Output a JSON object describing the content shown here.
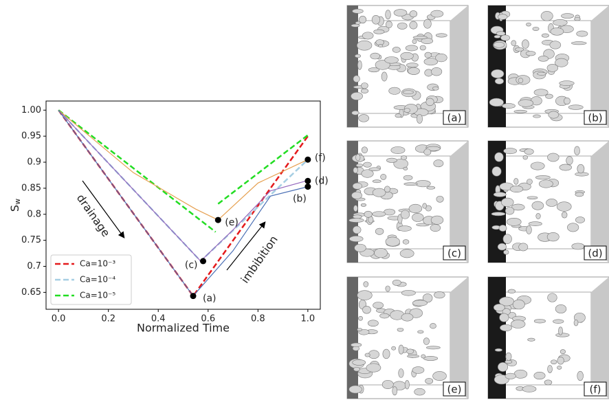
{
  "chart_data": {
    "type": "line",
    "xlabel": "Normalized Time",
    "ylabel": "S",
    "ylabel_subscript": "w",
    "xlim": [
      -0.05,
      1.05
    ],
    "ylim": [
      0.6175,
      1.0175
    ],
    "xticks": [
      {
        "value": 0,
        "label": "0.0"
      },
      {
        "value": 0.2,
        "label": "0.2"
      },
      {
        "value": 0.4,
        "label": "0.4"
      },
      {
        "value": 0.6,
        "label": "0.6"
      },
      {
        "value": 0.8,
        "label": "0.8"
      },
      {
        "value": 1,
        "label": "1.0"
      }
    ],
    "yticks": [
      0.65,
      0.7,
      0.75,
      0.8,
      0.85,
      0.9,
      0.95,
      {
        "value": 1,
        "label": "1.00"
      }
    ],
    "legend": "lower left",
    "series": [
      {
        "name": "Ca=10⁻³",
        "color": "#e41a1c",
        "dashed": true,
        "x": [
          0,
          0.54,
          1.0
        ],
        "values": [
          1.0,
          0.643,
          0.95
        ]
      },
      {
        "name": "Ca=10⁻⁴",
        "color": "#a6cee3",
        "dashed": true,
        "x": [
          0,
          0.57,
          1.0
        ],
        "values": [
          1.0,
          0.71,
          0.905
        ]
      },
      {
        "name": "Ca=10⁻⁵",
        "color": "#22dd22",
        "dashed": true,
        "x": [
          0,
          0.63,
          0.635,
          0.64,
          1.0
        ],
        "values": [
          1.0,
          0.766,
          null,
          0.82,
          0.952
        ]
      },
      {
        "color": "#9467bd",
        "dashed": false,
        "x": [
          0,
          0.57,
          0.7,
          0.85,
          1.0
        ],
        "values": [
          1.0,
          0.71,
          0.77,
          0.845,
          0.865
        ]
      },
      {
        "color": "#e6a050",
        "dashed": false,
        "x": [
          0,
          0.3,
          0.55,
          0.64,
          0.8,
          1.0
        ],
        "values": [
          1.0,
          0.88,
          0.81,
          0.789,
          0.86,
          0.905
        ]
      },
      {
        "color": "#4a6fb5",
        "dashed": false,
        "x": [
          0,
          0.54,
          0.7,
          0.85,
          1.0
        ],
        "values": [
          1.0,
          0.643,
          0.73,
          0.835,
          0.853
        ]
      }
    ],
    "points": {
      "x": [
        0.54,
        0.58,
        0.64,
        1.0,
        1.0,
        1.0
      ],
      "values": [
        0.643,
        0.71,
        0.789,
        0.905,
        0.864,
        0.853
      ],
      "labels": [
        "(a)",
        "(c)",
        "(e)",
        "(f)",
        "(d)",
        "(b)"
      ]
    },
    "annotations": [
      "drainage",
      "imbibition"
    ]
  },
  "panels": {
    "labels": [
      "(a)",
      "(b)",
      "(c)",
      "(d)",
      "(e)",
      "(f)"
    ]
  }
}
